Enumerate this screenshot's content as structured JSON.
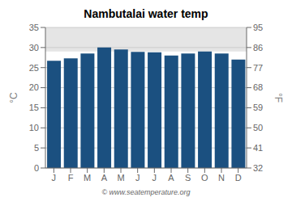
{
  "chart_data": {
    "type": "bar",
    "title": "Nambutalai water temp",
    "categories": [
      "J",
      "F",
      "M",
      "A",
      "M",
      "J",
      "J",
      "A",
      "S",
      "O",
      "N",
      "D"
    ],
    "values": [
      26.7,
      27.3,
      28.5,
      30.0,
      29.5,
      28.9,
      28.8,
      28.0,
      28.5,
      29.0,
      28.5,
      27.0
    ],
    "color": "#1b5080",
    "ylabel": "°C",
    "y2label": "°F",
    "ylim": [
      0,
      35
    ],
    "yticks": [
      0,
      5,
      10,
      15,
      20,
      25,
      30,
      35
    ],
    "y2lim": [
      32,
      95
    ],
    "y2ticks": [
      32,
      41,
      50,
      59,
      68,
      77,
      86,
      95
    ],
    "highlight_band": [
      29.0,
      35
    ],
    "annotations": [
      "© www.seatemperature.org"
    ],
    "grid": true
  }
}
